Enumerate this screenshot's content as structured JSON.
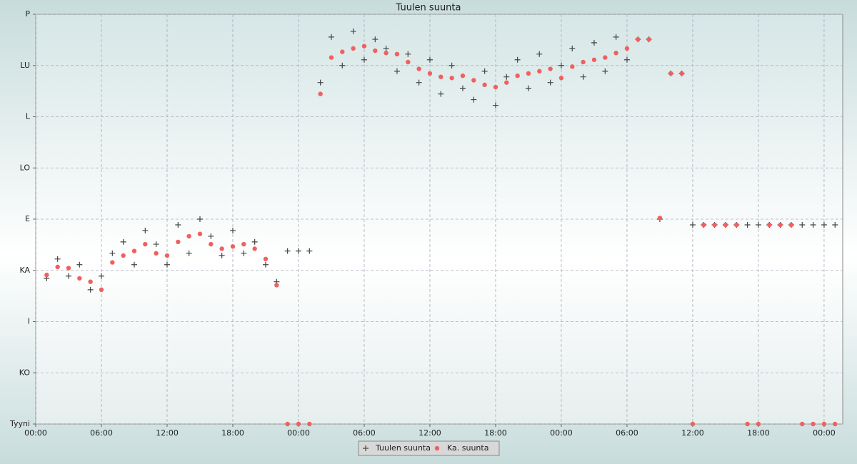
{
  "chart_data": {
    "type": "scatter",
    "title": "Tuulen suunta",
    "x": [
      1,
      2,
      3,
      4,
      5,
      6,
      7,
      8,
      9,
      10,
      11,
      12,
      13,
      14,
      15,
      16,
      17,
      18,
      19,
      20,
      21,
      22,
      23,
      24,
      25,
      26,
      27,
      28,
      29,
      30,
      31,
      32,
      33,
      34,
      35,
      36,
      37,
      38,
      39,
      40,
      41,
      42,
      43,
      44,
      45,
      46,
      47,
      48,
      49,
      50,
      51,
      52,
      53,
      54,
      55,
      56,
      57,
      58,
      59,
      60,
      61,
      62,
      63,
      64,
      65,
      66,
      67,
      68,
      69,
      70,
      71,
      72,
      73
    ],
    "series": [
      {
        "name": "Tuulen suunta",
        "color": "#444444",
        "marker": "plus",
        "values": [
          128,
          145,
          130,
          140,
          118,
          130,
          150,
          160,
          140,
          170,
          158,
          140,
          175,
          150,
          180,
          165,
          148,
          170,
          150,
          160,
          140,
          125,
          152,
          152,
          152,
          300,
          340,
          315,
          345,
          320,
          338,
          330,
          310,
          325,
          300,
          320,
          290,
          315,
          295,
          285,
          310,
          280,
          305,
          320,
          295,
          325,
          300,
          315,
          330,
          305,
          335,
          310,
          340,
          320,
          338,
          338,
          180,
          308,
          308,
          175,
          175,
          175,
          175,
          175,
          175,
          175,
          175,
          175,
          175,
          175,
          175,
          175,
          175
        ]
      },
      {
        "name": "Ka. suunta",
        "color": "#f06060",
        "marker": "circle",
        "values": [
          131,
          138,
          137,
          128,
          125,
          118,
          142,
          148,
          152,
          158,
          150,
          148,
          160,
          165,
          167,
          158,
          154,
          156,
          158,
          154,
          145,
          122,
          0,
          0,
          0,
          290,
          322,
          327,
          330,
          332,
          328,
          326,
          325,
          318,
          312,
          308,
          305,
          304,
          306,
          302,
          298,
          296,
          300,
          306,
          308,
          310,
          312,
          304,
          314,
          318,
          320,
          322,
          326,
          330,
          338,
          338,
          181,
          308,
          308,
          0,
          175,
          175,
          175,
          175,
          0,
          0,
          175,
          175,
          175,
          0,
          0,
          0,
          0
        ]
      }
    ],
    "xlim": [
      0,
      73.7
    ],
    "xticks": [
      {
        "value": 0,
        "label": "00:00"
      },
      {
        "value": 6,
        "label": "06:00"
      },
      {
        "value": 12,
        "label": "12:00"
      },
      {
        "value": 18,
        "label": "18:00"
      },
      {
        "value": 24,
        "label": "00:00"
      },
      {
        "value": 30,
        "label": "06:00"
      },
      {
        "value": 36,
        "label": "12:00"
      },
      {
        "value": 42,
        "label": "18:00"
      },
      {
        "value": 48,
        "label": "00:00"
      },
      {
        "value": 54,
        "label": "06:00"
      },
      {
        "value": 60,
        "label": "12:00"
      },
      {
        "value": 66,
        "label": "18:00"
      },
      {
        "value": 72,
        "label": "00:00"
      }
    ],
    "ylim": [
      0,
      360
    ],
    "yticks": [
      {
        "value": 0,
        "label": "Tyyni"
      },
      {
        "value": 45,
        "label": "KO"
      },
      {
        "value": 90,
        "label": "I"
      },
      {
        "value": 135,
        "label": "KA"
      },
      {
        "value": 180,
        "label": "E"
      },
      {
        "value": 225,
        "label": "LO"
      },
      {
        "value": 270,
        "label": "L"
      },
      {
        "value": 315,
        "label": "LU"
      },
      {
        "value": 360,
        "label": "P"
      }
    ],
    "grid": true,
    "legend": "bottom"
  }
}
